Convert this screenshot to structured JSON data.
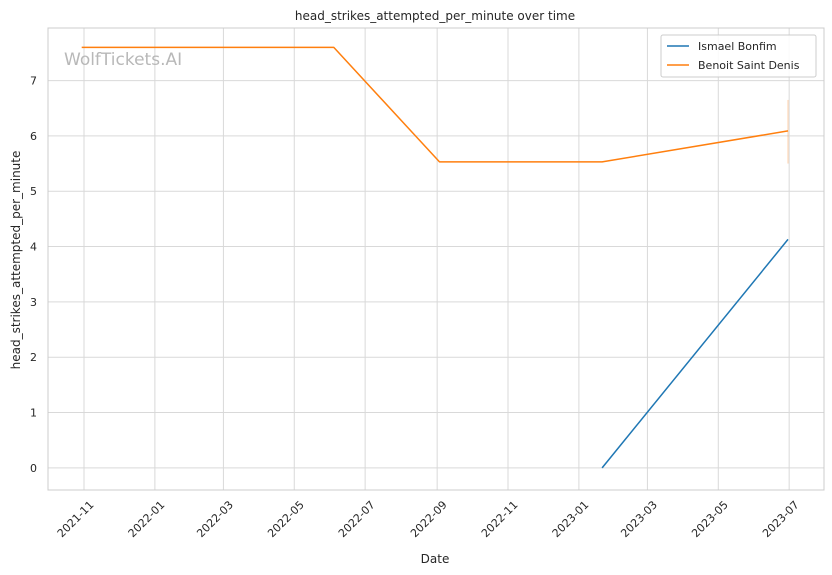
{
  "chart_data": {
    "type": "line",
    "title": "head_strikes_attempted_per_minute over time",
    "xlabel": "Date",
    "ylabel": "head_strikes_attempted_per_minute",
    "watermark": "WolfTickets.AI",
    "x_type": "date",
    "xlim": [
      "2021-10-01",
      "2023-07-31"
    ],
    "ylim": [
      -0.4,
      7.95
    ],
    "x_ticks": [
      "2021-11-01",
      "2022-01-01",
      "2022-03-01",
      "2022-05-01",
      "2022-07-01",
      "2022-09-01",
      "2022-11-01",
      "2023-01-01",
      "2023-03-01",
      "2023-05-01",
      "2023-07-01"
    ],
    "x_tick_labels": [
      "2021-11",
      "2022-01",
      "2022-03",
      "2022-05",
      "2022-07",
      "2022-09",
      "2022-11",
      "2023-01",
      "2023-03",
      "2023-05",
      "2023-07"
    ],
    "y_ticks": [
      0,
      1,
      2,
      3,
      4,
      5,
      6,
      7
    ],
    "y_tick_labels": [
      "0",
      "1",
      "2",
      "3",
      "4",
      "5",
      "6",
      "7"
    ],
    "grid": true,
    "legend_position": "top-right",
    "series": [
      {
        "name": "Ismael Bonfim",
        "color": "#1f77b4",
        "x": [
          "2023-01-21",
          "2023-06-30"
        ],
        "y": [
          0.0,
          4.13
        ]
      },
      {
        "name": "Benoit Saint Denis",
        "color": "#ff7f0e",
        "x": [
          "2021-10-30",
          "2022-06-04",
          "2022-09-03",
          "2023-01-21",
          "2023-06-30"
        ],
        "y": [
          7.6,
          7.6,
          5.53,
          5.53,
          6.09
        ]
      }
    ],
    "error_bar": {
      "series": "Benoit Saint Denis",
      "x": "2023-06-30",
      "low": 5.5,
      "high": 6.65
    }
  }
}
